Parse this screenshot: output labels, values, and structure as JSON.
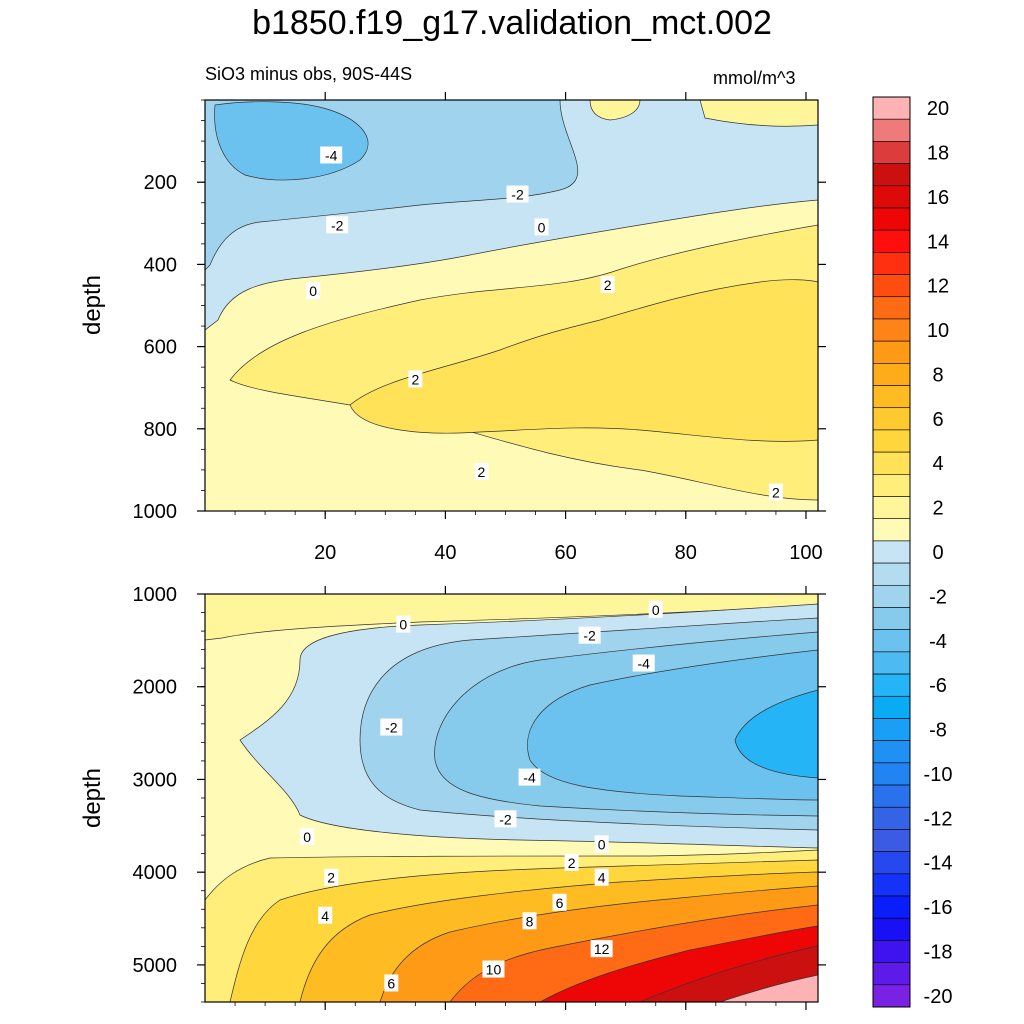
{
  "chart_data": {
    "type": "heatmap",
    "title": "b1850.f19_g17.validation_mct.002",
    "subtitle_left": "SiO3 minus obs, 90S-44S",
    "subtitle_right": "mmol/m^3",
    "colorbar": {
      "levels": [
        20,
        18,
        16,
        14,
        12,
        10,
        8,
        6,
        4,
        2,
        0,
        -2,
        -4,
        -6,
        -8,
        -10,
        -12,
        -14,
        -16,
        -18,
        -20
      ],
      "label_strings": [
        "20",
        "18",
        "16",
        "14",
        "12",
        "10",
        "8",
        "6",
        "4",
        "2",
        "0",
        "-2",
        "-4",
        "-6",
        "-8",
        "-10",
        "-12",
        "-14",
        "-16",
        "-18",
        "-20"
      ],
      "colors": [
        "#fdb3b3",
        "#ef7a7a",
        "#dd3c3c",
        "#cc1010",
        "#de0a0a",
        "#ee0505",
        "#ff0e0e",
        "#ff3010",
        "#ff4d12",
        "#ff6a15",
        "#ff8418",
        "#ff9a17",
        "#ffac1a",
        "#ffbc22",
        "#ffca30",
        "#ffd63c",
        "#ffe257",
        "#ffee7a",
        "#fff59b",
        "#fffbb7",
        "#c6e4f4",
        "#b3dcf0",
        "#a0d4ee",
        "#86caec",
        "#6cc2ef",
        "#4ebaf2",
        "#25b4f6",
        "#0aabf5",
        "#1a9ef6",
        "#2190f5",
        "#2283f3",
        "#2a71ee",
        "#3563e6",
        "#3b5be5",
        "#2848ef",
        "#1432f8",
        "#0a1dfb",
        "#1a10f6",
        "#3d14ef",
        "#5e1ae8",
        "#7a22e4"
      ]
    },
    "panels": [
      {
        "name": "upper",
        "ylabel": "depth",
        "x_ticks": [
          "20",
          "40",
          "60",
          "80",
          "100"
        ],
        "y_ticks": [
          "200",
          "400",
          "600",
          "800",
          "1000"
        ],
        "x_range": [
          0,
          102
        ],
        "y_range": [
          0,
          1000
        ],
        "y_reversed": true,
        "contour_labels": [
          {
            "text": "-4",
            "x": 21,
            "y": 135
          },
          {
            "text": "-2",
            "x": 52,
            "y": 230
          },
          {
            "text": "-2",
            "x": 22,
            "y": 305
          },
          {
            "text": "0",
            "x": 56,
            "y": 310
          },
          {
            "text": "0",
            "x": 18,
            "y": 465
          },
          {
            "text": "2",
            "x": 67,
            "y": 450
          },
          {
            "text": "2",
            "x": 35,
            "y": 680
          },
          {
            "text": "2",
            "x": 46,
            "y": 905
          },
          {
            "text": "2",
            "x": 95,
            "y": 955
          }
        ]
      },
      {
        "name": "lower",
        "ylabel": "depth",
        "x_ticks": [],
        "y_ticks": [
          "1000",
          "2000",
          "3000",
          "4000",
          "5000"
        ],
        "x_range": [
          0,
          102
        ],
        "y_range": [
          1000,
          5400
        ],
        "y_reversed": true,
        "contour_labels": [
          {
            "text": "0",
            "x": 75,
            "y": 1170
          },
          {
            "text": "0",
            "x": 33,
            "y": 1330
          },
          {
            "text": "-2",
            "x": 64,
            "y": 1450
          },
          {
            "text": "-4",
            "x": 73,
            "y": 1750
          },
          {
            "text": "-2",
            "x": 31,
            "y": 2440
          },
          {
            "text": "-4",
            "x": 54,
            "y": 2980
          },
          {
            "text": "-2",
            "x": 50,
            "y": 3430
          },
          {
            "text": "0",
            "x": 17,
            "y": 3620
          },
          {
            "text": "0",
            "x": 66,
            "y": 3700
          },
          {
            "text": "2",
            "x": 61,
            "y": 3900
          },
          {
            "text": "4",
            "x": 66,
            "y": 4060
          },
          {
            "text": "2",
            "x": 21,
            "y": 4060
          },
          {
            "text": "6",
            "x": 59,
            "y": 4330
          },
          {
            "text": "8",
            "x": 54,
            "y": 4530
          },
          {
            "text": "4",
            "x": 20,
            "y": 4470
          },
          {
            "text": "12",
            "x": 66,
            "y": 4830
          },
          {
            "text": "10",
            "x": 48,
            "y": 5050
          },
          {
            "text": "6",
            "x": 31,
            "y": 5200
          }
        ]
      }
    ]
  }
}
